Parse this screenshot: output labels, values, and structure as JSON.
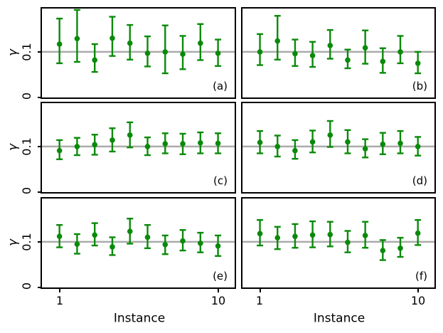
{
  "figure": {
    "ylabel": "γ",
    "xlabel": "Instance",
    "ytick_top": "0.1",
    "ytick_bottom": "0",
    "xtick_first": "1",
    "xtick_last": "10",
    "colors": {
      "series_green": "#0a8a0a",
      "reference_line": "#ababab",
      "spine": "#000000",
      "background": "#ffffff"
    }
  },
  "chart_data": [
    {
      "type": "scatter",
      "label": "(a)",
      "x": [
        1,
        2,
        3,
        4,
        5,
        6,
        7,
        8,
        9,
        10
      ],
      "y": [
        0.117,
        0.129,
        0.082,
        0.13,
        0.119,
        0.097,
        0.1,
        0.095,
        0.119,
        0.097
      ],
      "err_lo": [
        0.075,
        0.078,
        0.056,
        0.091,
        0.083,
        0.068,
        0.053,
        0.062,
        0.082,
        0.069
      ],
      "err_hi": [
        0.173,
        0.192,
        0.117,
        0.177,
        0.159,
        0.134,
        0.158,
        0.135,
        0.161,
        0.127
      ],
      "xlabel": "Instance",
      "ylabel": "γ",
      "xlim": [
        0,
        10.95
      ],
      "ylim": [
        0,
        0.195
      ],
      "refline": 0.1,
      "xticks": [
        1,
        10
      ],
      "yticks": [
        0.1,
        0
      ],
      "grid": false,
      "legend": "none"
    },
    {
      "type": "scatter",
      "label": "(b)",
      "x": [
        1,
        2,
        3,
        4,
        5,
        6,
        7,
        8,
        9,
        10
      ],
      "y": [
        0.1,
        0.124,
        0.096,
        0.092,
        0.114,
        0.082,
        0.109,
        0.079,
        0.1,
        0.075
      ],
      "err_lo": [
        0.071,
        0.083,
        0.069,
        0.067,
        0.085,
        0.064,
        0.074,
        0.054,
        0.075,
        0.053
      ],
      "err_hi": [
        0.139,
        0.179,
        0.127,
        0.122,
        0.148,
        0.105,
        0.147,
        0.108,
        0.135,
        0.1
      ],
      "xlabel": "Instance",
      "ylabel": "γ",
      "xlim": [
        0,
        10.95
      ],
      "ylim": [
        0,
        0.195
      ],
      "refline": 0.1,
      "xticks": [
        1,
        10
      ],
      "yticks": [
        0.1,
        0
      ],
      "grid": false,
      "legend": "none"
    },
    {
      "type": "scatter",
      "label": "(c)",
      "x": [
        1,
        2,
        3,
        4,
        5,
        6,
        7,
        8,
        9,
        10
      ],
      "y": [
        0.091,
        0.1,
        0.104,
        0.114,
        0.125,
        0.1,
        0.106,
        0.106,
        0.108,
        0.107
      ],
      "err_lo": [
        0.072,
        0.081,
        0.082,
        0.089,
        0.098,
        0.081,
        0.085,
        0.083,
        0.085,
        0.085
      ],
      "err_hi": [
        0.114,
        0.119,
        0.126,
        0.14,
        0.153,
        0.12,
        0.129,
        0.128,
        0.131,
        0.129
      ],
      "xlabel": "Instance",
      "ylabel": "γ",
      "xlim": [
        0,
        10.95
      ],
      "ylim": [
        0,
        0.195
      ],
      "refline": 0.1,
      "xticks": [
        1,
        10
      ],
      "yticks": [
        0.1,
        0
      ],
      "grid": false,
      "legend": "none"
    },
    {
      "type": "scatter",
      "label": "(d)",
      "x": [
        1,
        2,
        3,
        4,
        5,
        6,
        7,
        8,
        9,
        10
      ],
      "y": [
        0.109,
        0.1,
        0.091,
        0.11,
        0.125,
        0.11,
        0.095,
        0.105,
        0.107,
        0.1
      ],
      "err_lo": [
        0.085,
        0.078,
        0.073,
        0.087,
        0.099,
        0.085,
        0.076,
        0.083,
        0.085,
        0.08
      ],
      "err_hi": [
        0.134,
        0.124,
        0.114,
        0.135,
        0.156,
        0.136,
        0.116,
        0.13,
        0.134,
        0.121
      ],
      "xlabel": "Instance",
      "ylabel": "γ",
      "xlim": [
        0,
        10.95
      ],
      "ylim": [
        0,
        0.195
      ],
      "refline": 0.1,
      "xticks": [
        1,
        10
      ],
      "yticks": [
        0.1,
        0
      ],
      "grid": false,
      "legend": "none"
    },
    {
      "type": "scatter",
      "label": "(e)",
      "x": [
        1,
        2,
        3,
        4,
        5,
        6,
        7,
        8,
        9,
        10
      ],
      "y": [
        0.112,
        0.095,
        0.115,
        0.089,
        0.123,
        0.11,
        0.094,
        0.102,
        0.097,
        0.091
      ],
      "err_lo": [
        0.088,
        0.074,
        0.092,
        0.071,
        0.096,
        0.086,
        0.073,
        0.081,
        0.077,
        0.069
      ],
      "err_hi": [
        0.137,
        0.117,
        0.141,
        0.11,
        0.151,
        0.137,
        0.114,
        0.126,
        0.12,
        0.114
      ],
      "xlabel": "Instance",
      "ylabel": "γ",
      "xlim": [
        0,
        10.95
      ],
      "ylim": [
        0,
        0.195
      ],
      "refline": 0.1,
      "xticks": [
        1,
        10
      ],
      "yticks": [
        0.1,
        0
      ],
      "grid": false,
      "legend": "none"
    },
    {
      "type": "scatter",
      "label": "(f)",
      "x": [
        1,
        2,
        3,
        4,
        5,
        6,
        7,
        8,
        9,
        10
      ],
      "y": [
        0.118,
        0.109,
        0.112,
        0.115,
        0.116,
        0.099,
        0.114,
        0.081,
        0.086,
        0.119
      ],
      "err_lo": [
        0.092,
        0.084,
        0.087,
        0.088,
        0.09,
        0.077,
        0.087,
        0.06,
        0.067,
        0.093
      ],
      "err_hi": [
        0.148,
        0.133,
        0.139,
        0.145,
        0.144,
        0.124,
        0.144,
        0.104,
        0.109,
        0.148
      ],
      "xlabel": "Instance",
      "ylabel": "γ",
      "xlim": [
        0,
        10.95
      ],
      "ylim": [
        0,
        0.195
      ],
      "refline": 0.1,
      "xticks": [
        1,
        10
      ],
      "yticks": [
        0.1,
        0
      ],
      "grid": false,
      "legend": "none"
    }
  ]
}
